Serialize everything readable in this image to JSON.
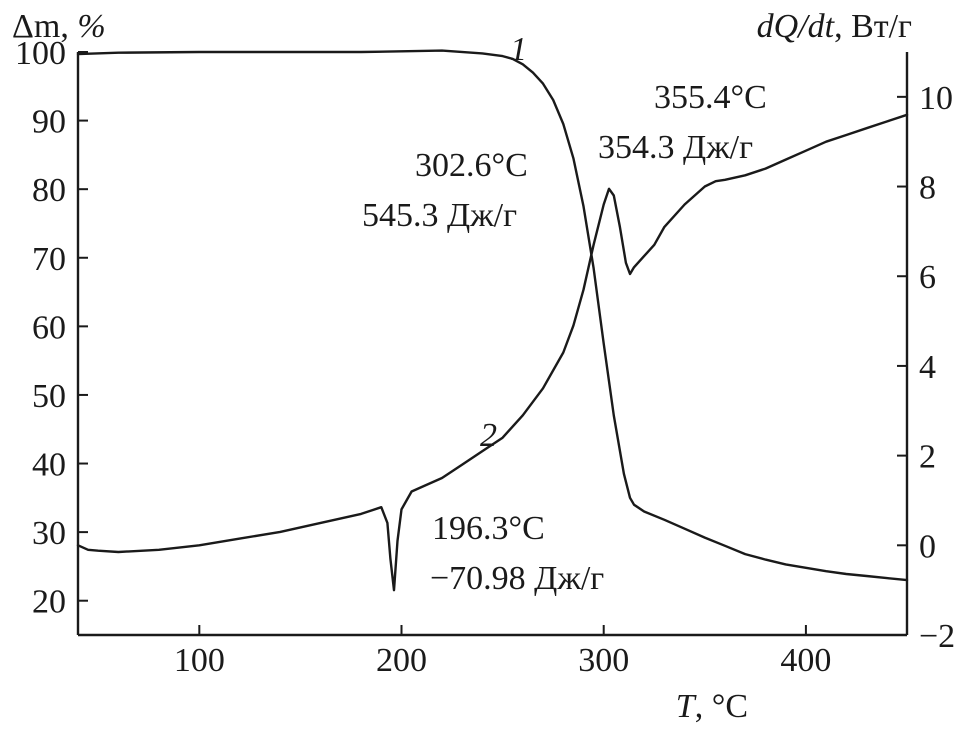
{
  "chart_data": {
    "type": "line",
    "title": "",
    "xlabel": {
      "var": "T",
      "unit": "°C"
    },
    "ylabel_left": {
      "var": "Δm",
      "unit": "%"
    },
    "ylabel_right": {
      "var": "dQ/dt",
      "unit": "Вт/г"
    },
    "xlim": [
      40,
      450
    ],
    "ylim_left": [
      15,
      100
    ],
    "ylim_right": [
      -2,
      11
    ],
    "x_ticks": [
      100,
      200,
      300,
      400
    ],
    "y_left_ticks": [
      20,
      30,
      40,
      50,
      60,
      70,
      80,
      90,
      100
    ],
    "y_right_ticks": [
      -2,
      0,
      2,
      4,
      6,
      8,
      10
    ],
    "x_tick_labels": [
      "100",
      "200",
      "300",
      "400"
    ],
    "y_left_tick_labels": [
      "20",
      "30",
      "40",
      "50",
      "60",
      "70",
      "80",
      "90",
      "100"
    ],
    "y_right_tick_labels": [
      "−2",
      "0",
      "2",
      "4",
      "6",
      "8",
      "10"
    ],
    "grid": false,
    "series": [
      {
        "name": "1",
        "axis": "left",
        "x": [
          40,
          60,
          100,
          150,
          180,
          200,
          220,
          240,
          250,
          255,
          260,
          265,
          270,
          275,
          280,
          285,
          290,
          295,
          300,
          305,
          310,
          313,
          315,
          320,
          330,
          340,
          350,
          360,
          370,
          380,
          390,
          400,
          410,
          420,
          430,
          440,
          450
        ],
        "y": [
          99.7,
          99.9,
          100,
          100,
          100,
          100.1,
          100.2,
          99.8,
          99.4,
          99,
          98.2,
          97,
          95.4,
          93,
          89.5,
          84.5,
          77.5,
          68.5,
          57.5,
          47,
          38.5,
          35,
          34,
          33,
          31.8,
          30.5,
          29.2,
          28,
          26.8,
          26,
          25.3,
          24.8,
          24.3,
          23.9,
          23.6,
          23.3,
          23
        ]
      },
      {
        "name": "2",
        "axis": "right",
        "x": [
          40,
          45,
          50,
          60,
          80,
          100,
          120,
          140,
          160,
          180,
          190,
          193,
          194.5,
          196.3,
          198,
          200,
          205,
          210,
          220,
          230,
          240,
          250,
          260,
          270,
          280,
          285,
          290,
          295,
          300,
          302.6,
          305,
          308,
          311,
          313,
          315,
          320,
          325,
          330,
          340,
          350,
          355.4,
          360,
          370,
          380,
          390,
          400,
          410,
          420,
          430,
          440,
          450
        ],
        "y": [
          0,
          -0.1,
          -0.12,
          -0.15,
          -0.1,
          0,
          0.15,
          0.3,
          0.5,
          0.7,
          0.85,
          0.5,
          -0.3,
          -1,
          0.1,
          0.8,
          1.2,
          1.3,
          1.5,
          1.8,
          2.1,
          2.4,
          2.9,
          3.5,
          4.3,
          4.9,
          5.7,
          6.7,
          7.6,
          7.95,
          7.8,
          7.1,
          6.3,
          6.05,
          6.2,
          6.45,
          6.7,
          7.1,
          7.6,
          8.0,
          8.12,
          8.15,
          8.25,
          8.4,
          8.6,
          8.8,
          9.0,
          9.15,
          9.3,
          9.45,
          9.6
        ]
      }
    ],
    "annotations": [
      {
        "line1": "355.4°C",
        "line2": "354.3 Дж/г"
      },
      {
        "line1": "302.6°C",
        "line2": "545.3 Дж/г"
      },
      {
        "line1": "196.3°C",
        "line2": "−70.98 Дж/г"
      }
    ]
  }
}
